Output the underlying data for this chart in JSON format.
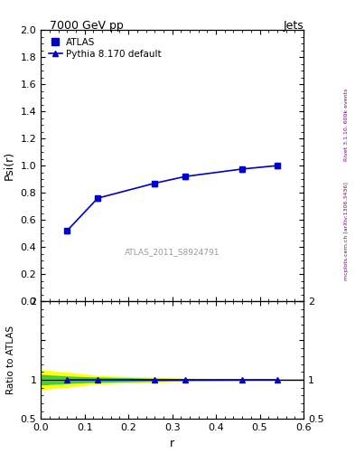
{
  "title": "7000 GeV pp",
  "title_right": "Jets",
  "ylabel_main": "Psi(r)",
  "ylabel_ratio": "Ratio to ATLAS",
  "xlabel": "r",
  "watermark": "ATLAS_2011_S8924791",
  "right_label_bottom": "mcplots.cern.ch [arXiv:1306.3436]",
  "right_label_top": "Rivet 3.1.10, 600k events",
  "x_data": [
    0.06,
    0.13,
    0.26,
    0.33,
    0.46,
    0.54
  ],
  "y_atlas": [
    0.52,
    0.76,
    0.87,
    0.92,
    0.975,
    1.0
  ],
  "y_pythia": [
    0.52,
    0.76,
    0.87,
    0.92,
    0.975,
    1.0
  ],
  "y_ratio": [
    1.0,
    1.0,
    1.0,
    1.0,
    1.0,
    1.0
  ],
  "ylim_main": [
    0.0,
    2.0
  ],
  "ylim_ratio": [
    0.5,
    2.0
  ],
  "xlim": [
    0.0,
    0.6
  ],
  "band_yellow_x": [
    0.0,
    0.06,
    0.13,
    0.26,
    0.33,
    0.46,
    0.54,
    0.6
  ],
  "band_yellow_lo": [
    0.88,
    0.91,
    0.955,
    0.978,
    0.987,
    0.995,
    0.999,
    1.0
  ],
  "band_yellow_hi": [
    1.12,
    1.09,
    1.045,
    1.022,
    1.013,
    1.005,
    1.001,
    1.0
  ],
  "band_green_lo": [
    0.94,
    0.96,
    0.975,
    0.988,
    0.993,
    0.998,
    1.0,
    1.0
  ],
  "band_green_hi": [
    1.06,
    1.04,
    1.025,
    1.012,
    1.007,
    1.002,
    1.0,
    1.0
  ],
  "line_color": "#0000CC",
  "background_color": "#ffffff",
  "legend_labels": [
    "ATLAS",
    "Pythia 8.170 default"
  ]
}
